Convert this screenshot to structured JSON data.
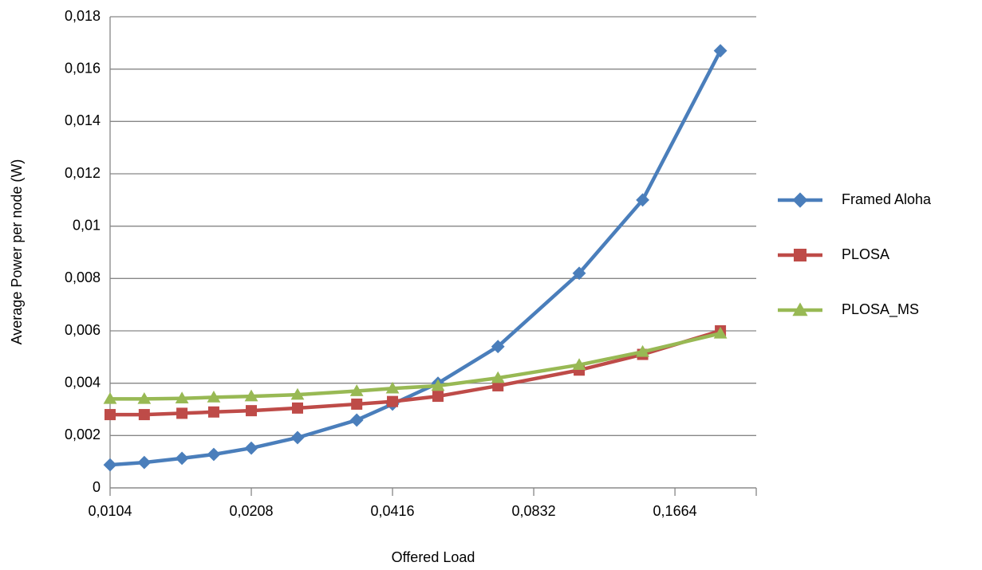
{
  "chart_data": {
    "type": "line",
    "xlabel": "Offered Load",
    "ylabel": "Average Power per node (W)",
    "x": [
      0.0104,
      0.0123,
      0.0148,
      0.0173,
      0.0208,
      0.0261,
      0.0349,
      0.0416,
      0.052,
      0.0698,
      0.104,
      0.142,
      0.208
    ],
    "xscale": "log",
    "xlim": [
      0.0104,
      0.248
    ],
    "xticks": [
      {
        "value": 0.0104,
        "label": "0,0104"
      },
      {
        "value": 0.0208,
        "label": "0,0208"
      },
      {
        "value": 0.0416,
        "label": "0,0416"
      },
      {
        "value": 0.0832,
        "label": "0,0832"
      },
      {
        "value": 0.1664,
        "label": "0,1664"
      }
    ],
    "ylim": [
      0,
      0.018
    ],
    "yticks": [
      0,
      {
        "value": 0.002,
        "label": "0,002"
      },
      {
        "value": 0.004,
        "label": "0,004"
      },
      {
        "value": 0.006,
        "label": "0,006"
      },
      {
        "value": 0.008,
        "label": "0,008"
      },
      {
        "value": 0.01,
        "label": "0,01"
      },
      {
        "value": 0.012,
        "label": "0,012"
      },
      {
        "value": 0.014,
        "label": "0,014"
      },
      {
        "value": 0.016,
        "label": "0,016"
      },
      {
        "value": 0.018,
        "label": "0,018"
      }
    ],
    "grid": true,
    "legend": "right",
    "series": [
      {
        "name": "Framed Aloha",
        "color": "#4a7ebb",
        "marker": "diamond",
        "values": [
          0.00088,
          0.00097,
          0.00113,
          0.00128,
          0.00152,
          0.00192,
          0.00259,
          0.0032,
          0.004,
          0.0054,
          0.0082,
          0.011,
          0.0167
        ]
      },
      {
        "name": "PLOSA",
        "color": "#be4b48",
        "marker": "square",
        "values": [
          0.0028,
          0.0028,
          0.00285,
          0.0029,
          0.00295,
          0.00305,
          0.0032,
          0.0033,
          0.0035,
          0.0039,
          0.0045,
          0.0051,
          0.006
        ]
      },
      {
        "name": "PLOSA_MS",
        "color": "#98b954",
        "marker": "triangle",
        "values": [
          0.0034,
          0.0034,
          0.00342,
          0.00346,
          0.0035,
          0.00356,
          0.0037,
          0.0038,
          0.0039,
          0.0042,
          0.0047,
          0.0052,
          0.0059
        ]
      }
    ]
  }
}
